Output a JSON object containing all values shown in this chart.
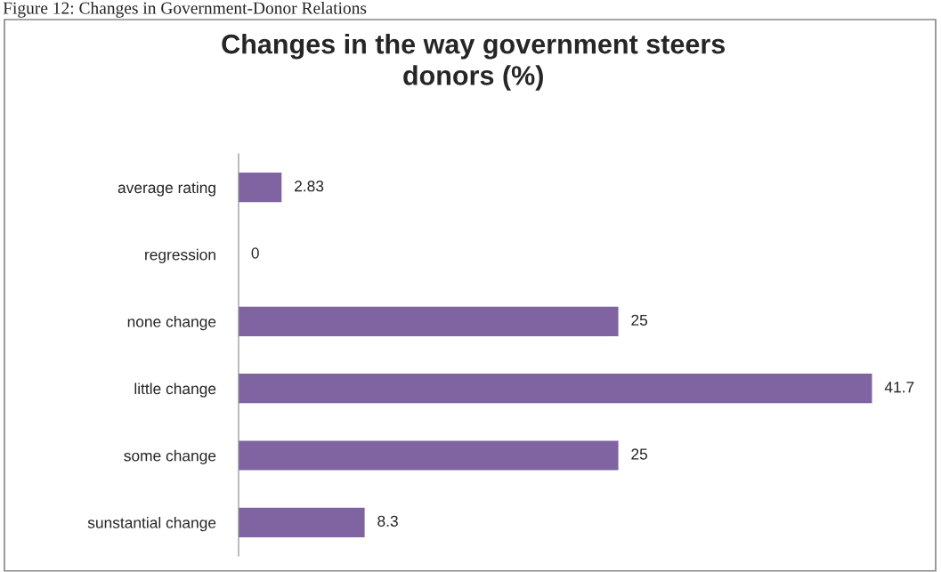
{
  "chart_data": {
    "type": "bar",
    "orientation": "horizontal",
    "title": "Changes in the way government steers\ndonors (%)",
    "annotations": [
      "Figure 12: Changes in Government-Donor Relations"
    ],
    "categories": [
      "average rating",
      "regression",
      "none change",
      "little change",
      "some change",
      "sunstantial change"
    ],
    "values": [
      2.83,
      0,
      25,
      41.7,
      25,
      8.3
    ],
    "color": "#8064a2",
    "data_labels": true,
    "grid": false,
    "legend": false,
    "tick_labels": "y"
  }
}
